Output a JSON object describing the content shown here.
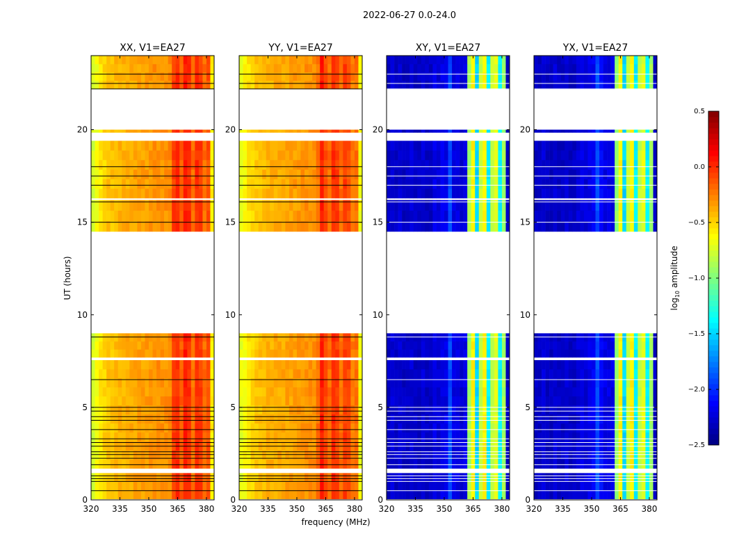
{
  "chart_data": {
    "type": "heatmap",
    "title": "2022-06-27 0.0-24.0",
    "xlabel": "frequency (MHz)",
    "ylabel": "UT (hours)",
    "xlim": [
      320,
      384
    ],
    "ylim": [
      0,
      24
    ],
    "xticks": [
      "320",
      "335",
      "350",
      "365",
      "380"
    ],
    "xtick_values": [
      320,
      335,
      350,
      365,
      380
    ],
    "yticks": [
      "0",
      "5",
      "10",
      "15",
      "20"
    ],
    "ytick_values": [
      0,
      5,
      10,
      15,
      20
    ],
    "freq_bins_start": 320,
    "freq_bin_width": 2,
    "time_segments_with_data": [
      [
        0.05,
        1.45
      ],
      [
        1.7,
        7.55
      ],
      [
        7.7,
        9.0
      ],
      [
        14.5,
        16.2
      ],
      [
        16.3,
        19.4
      ],
      [
        19.85,
        20.0
      ],
      [
        22.2,
        24.0
      ]
    ],
    "flagged_lines_hours": [
      0.5,
      1.0,
      1.15,
      1.3,
      1.9,
      2.25,
      2.45,
      2.6,
      2.9,
      3.1,
      3.3,
      3.8,
      4.3,
      4.5,
      4.8,
      5.0,
      6.5,
      8.8,
      15.0,
      16.1,
      17.0,
      17.5,
      18.0,
      22.2,
      22.5,
      23.0
    ],
    "panels": [
      {
        "title": "XX, V1=EA27",
        "profile": [
          -0.75,
          -0.65,
          -0.55,
          -0.5,
          -0.45,
          -0.45,
          -0.42,
          -0.4,
          -0.4,
          -0.38,
          -0.38,
          -0.36,
          -0.35,
          -0.35,
          -0.34,
          -0.32,
          -0.3,
          -0.3,
          -0.3,
          -0.3,
          -0.28,
          -0.05,
          0.0,
          -0.15,
          0.05,
          0.0,
          -0.2,
          0.0,
          -0.05,
          -0.2,
          -0.1,
          -0.6
        ]
      },
      {
        "title": "YY, V1=EA27",
        "profile": [
          -0.7,
          -0.62,
          -0.55,
          -0.5,
          -0.46,
          -0.44,
          -0.42,
          -0.4,
          -0.4,
          -0.38,
          -0.38,
          -0.37,
          -0.36,
          -0.35,
          -0.34,
          -0.33,
          -0.32,
          -0.3,
          -0.3,
          -0.3,
          -0.2,
          0.05,
          -0.1,
          -0.2,
          0.0,
          -0.05,
          -0.2,
          -0.05,
          -0.1,
          -0.25,
          -0.2,
          -0.65
        ]
      },
      {
        "title": "XY, V1=EA27",
        "profile": [
          -2.3,
          -2.25,
          -2.3,
          -2.25,
          -2.3,
          -2.3,
          -2.25,
          -2.3,
          -2.3,
          -2.25,
          -2.3,
          -2.3,
          -2.2,
          -2.25,
          -2.2,
          -2.2,
          -1.9,
          -2.2,
          -2.2,
          -2.25,
          -2.2,
          -0.9,
          -0.6,
          -1.5,
          -0.8,
          -0.6,
          -1.4,
          -0.8,
          -0.7,
          -1.4,
          -0.9,
          -2.3
        ]
      },
      {
        "title": "YX, V1=EA27",
        "profile": [
          -2.3,
          -2.3,
          -2.25,
          -2.3,
          -2.3,
          -2.25,
          -2.3,
          -2.3,
          -2.25,
          -2.3,
          -2.3,
          -2.25,
          -2.2,
          -2.25,
          -2.2,
          -2.15,
          -1.9,
          -2.1,
          -2.2,
          -2.2,
          -2.2,
          -0.95,
          -0.6,
          -1.5,
          -0.8,
          -0.6,
          -1.4,
          -0.8,
          -0.7,
          -1.4,
          -0.9,
          -2.3
        ]
      }
    ],
    "colorbar": {
      "label": "log10 amplitude",
      "label_main": "log",
      "label_sub": "10",
      "label_rest": " amplitude",
      "range": [
        -2.5,
        0.5
      ],
      "ticks": [
        "0.5",
        "0.0",
        "−0.5",
        "−1.0",
        "−1.5",
        "−2.0",
        "−2.5"
      ],
      "tick_values": [
        0.5,
        0.0,
        -0.5,
        -1.0,
        -1.5,
        -2.0,
        -2.5
      ],
      "colormap": "jet"
    }
  }
}
